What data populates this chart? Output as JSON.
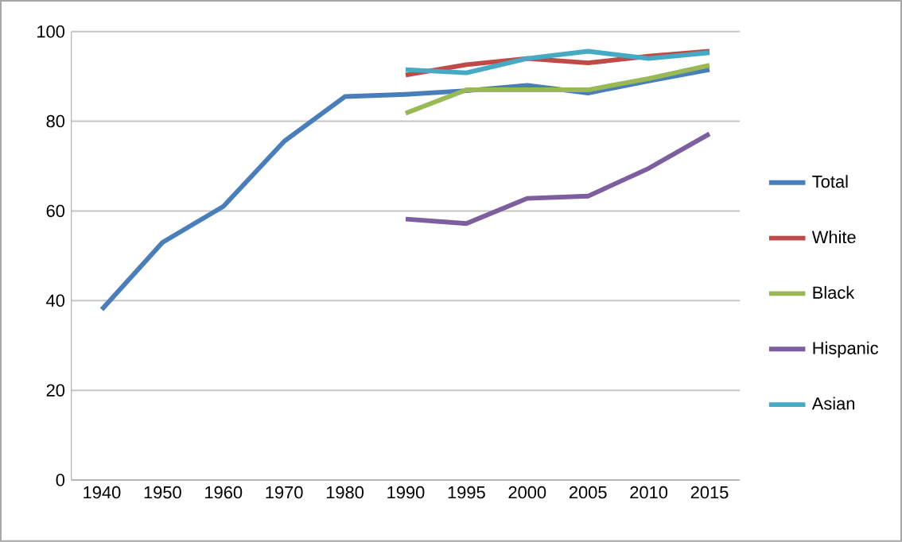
{
  "chart_data": {
    "type": "line",
    "categories": [
      "1940",
      "1950",
      "1960",
      "1970",
      "1980",
      "1990",
      "1995",
      "2000",
      "2005",
      "2010",
      "2015"
    ],
    "series": [
      {
        "name": "Total",
        "color": "#4a7ebb",
        "values": [
          38,
          53,
          61,
          75.5,
          85.5,
          86,
          86.8,
          88,
          86.3,
          89,
          91.5
        ]
      },
      {
        "name": "White",
        "color": "#be4b48",
        "values": [
          null,
          null,
          null,
          null,
          null,
          90.3,
          92.6,
          94,
          93,
          94.5,
          95.6
        ]
      },
      {
        "name": "Black",
        "color": "#98b954",
        "values": [
          null,
          null,
          null,
          null,
          null,
          81.8,
          87,
          87,
          87,
          89.5,
          92.5
        ]
      },
      {
        "name": "Hispanic",
        "color": "#7d5fa0",
        "values": [
          null,
          null,
          null,
          null,
          null,
          58.2,
          57.2,
          62.8,
          63.3,
          69.5,
          77.2
        ]
      },
      {
        "name": "Asian",
        "color": "#46aac5",
        "values": [
          null,
          null,
          null,
          null,
          null,
          91.5,
          90.8,
          94,
          95.6,
          94,
          95.3
        ]
      }
    ],
    "ylim": [
      0,
      100
    ],
    "yticks": [
      0,
      20,
      40,
      60,
      80,
      100
    ],
    "grid": "y",
    "legend": "right",
    "marker": "none",
    "line_style": "solid"
  }
}
